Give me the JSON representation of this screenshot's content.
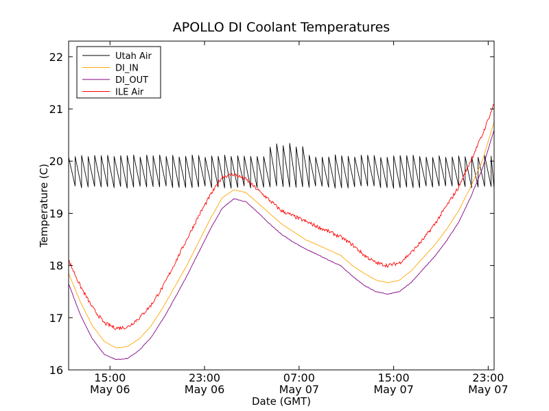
{
  "chart_data": {
    "type": "line",
    "title": "APOLLO DI Coolant Temperatures",
    "xlabel": "Date (GMT)",
    "ylabel": "Temperature (C)",
    "x_unit": "hours since May 06 00:00 GMT",
    "xlim": [
      11.5,
      47.5
    ],
    "ylim": [
      16,
      22.3
    ],
    "yticks": [
      16,
      17,
      18,
      19,
      20,
      21,
      22
    ],
    "xticks": [
      {
        "x": 15,
        "line1": "15:00",
        "line2": "May 06"
      },
      {
        "x": 23,
        "line1": "23:00",
        "line2": "May 06"
      },
      {
        "x": 31,
        "line1": "07:00",
        "line2": "May 07"
      },
      {
        "x": 39,
        "line1": "15:00",
        "line2": "May 07"
      },
      {
        "x": 47,
        "line1": "23:00",
        "line2": "May 07"
      }
    ],
    "legend_position": "top-left",
    "series": [
      {
        "name": "Utah Air",
        "color": "#000000",
        "style": "sawtooth",
        "low": 19.5,
        "high": 20.1,
        "period_hours": 0.55,
        "note": "oscillates between about 19.5 and 20.1 C, with some peaks near 20.3 C around 29-31 h"
      },
      {
        "name": "DI_IN",
        "color": "#ffa500",
        "x": [
          11.5,
          12.5,
          13.5,
          14.5,
          15.5,
          16.5,
          17.5,
          18.5,
          19.5,
          20.5,
          21.5,
          22.5,
          23.5,
          24.5,
          25.5,
          26.5,
          27.5,
          28.5,
          29.5,
          30.5,
          31.5,
          32.5,
          33.5,
          34.5,
          35.5,
          36.5,
          37.5,
          38.5,
          39.5,
          40.5,
          41.5,
          42.5,
          43.5,
          44.5,
          45.5,
          46.5,
          47.5
        ],
        "values": [
          17.85,
          17.3,
          16.85,
          16.55,
          16.42,
          16.45,
          16.6,
          16.85,
          17.2,
          17.6,
          18.0,
          18.45,
          18.9,
          19.3,
          19.45,
          19.4,
          19.2,
          19.0,
          18.8,
          18.65,
          18.5,
          18.4,
          18.3,
          18.2,
          18.0,
          17.85,
          17.72,
          17.67,
          17.72,
          17.9,
          18.15,
          18.4,
          18.7,
          19.05,
          19.5,
          20.0,
          20.75
        ]
      },
      {
        "name": "DI_OUT",
        "color": "#800080",
        "x": [
          11.5,
          12.5,
          13.5,
          14.5,
          15.5,
          16.5,
          17.5,
          18.5,
          19.5,
          20.5,
          21.5,
          22.5,
          23.5,
          24.5,
          25.5,
          26.5,
          27.5,
          28.5,
          29.5,
          30.5,
          31.5,
          32.5,
          33.5,
          34.5,
          35.5,
          36.5,
          37.5,
          38.5,
          39.5,
          40.5,
          41.5,
          42.5,
          43.5,
          44.5,
          45.5,
          46.5,
          47.5
        ],
        "values": [
          17.65,
          17.05,
          16.6,
          16.3,
          16.2,
          16.22,
          16.38,
          16.63,
          16.98,
          17.38,
          17.8,
          18.25,
          18.7,
          19.1,
          19.28,
          19.22,
          19.02,
          18.8,
          18.6,
          18.45,
          18.32,
          18.22,
          18.1,
          18.0,
          17.8,
          17.62,
          17.5,
          17.45,
          17.5,
          17.68,
          17.93,
          18.18,
          18.48,
          18.83,
          19.3,
          19.85,
          20.6
        ]
      },
      {
        "name": "ILE Air",
        "color": "#ff0000",
        "x": [
          11.5,
          12.5,
          13.5,
          14.5,
          15.5,
          16.5,
          17.5,
          18.5,
          19.5,
          20.5,
          21.5,
          22.5,
          23.5,
          24.5,
          25.5,
          26.5,
          27.5,
          28.5,
          29.5,
          30.5,
          31.5,
          32.5,
          33.5,
          34.5,
          35.5,
          36.5,
          37.5,
          38.5,
          39.5,
          40.5,
          41.5,
          42.5,
          43.5,
          44.5,
          45.5,
          46.5,
          47.5
        ],
        "values": [
          18.1,
          17.6,
          17.2,
          16.9,
          16.8,
          16.82,
          17.0,
          17.25,
          17.6,
          18.05,
          18.5,
          18.95,
          19.35,
          19.7,
          19.75,
          19.65,
          19.45,
          19.25,
          19.05,
          18.95,
          18.85,
          18.75,
          18.65,
          18.55,
          18.4,
          18.2,
          18.05,
          18.0,
          18.05,
          18.25,
          18.5,
          18.8,
          19.15,
          19.5,
          20.0,
          20.5,
          21.1
        ]
      }
    ]
  }
}
